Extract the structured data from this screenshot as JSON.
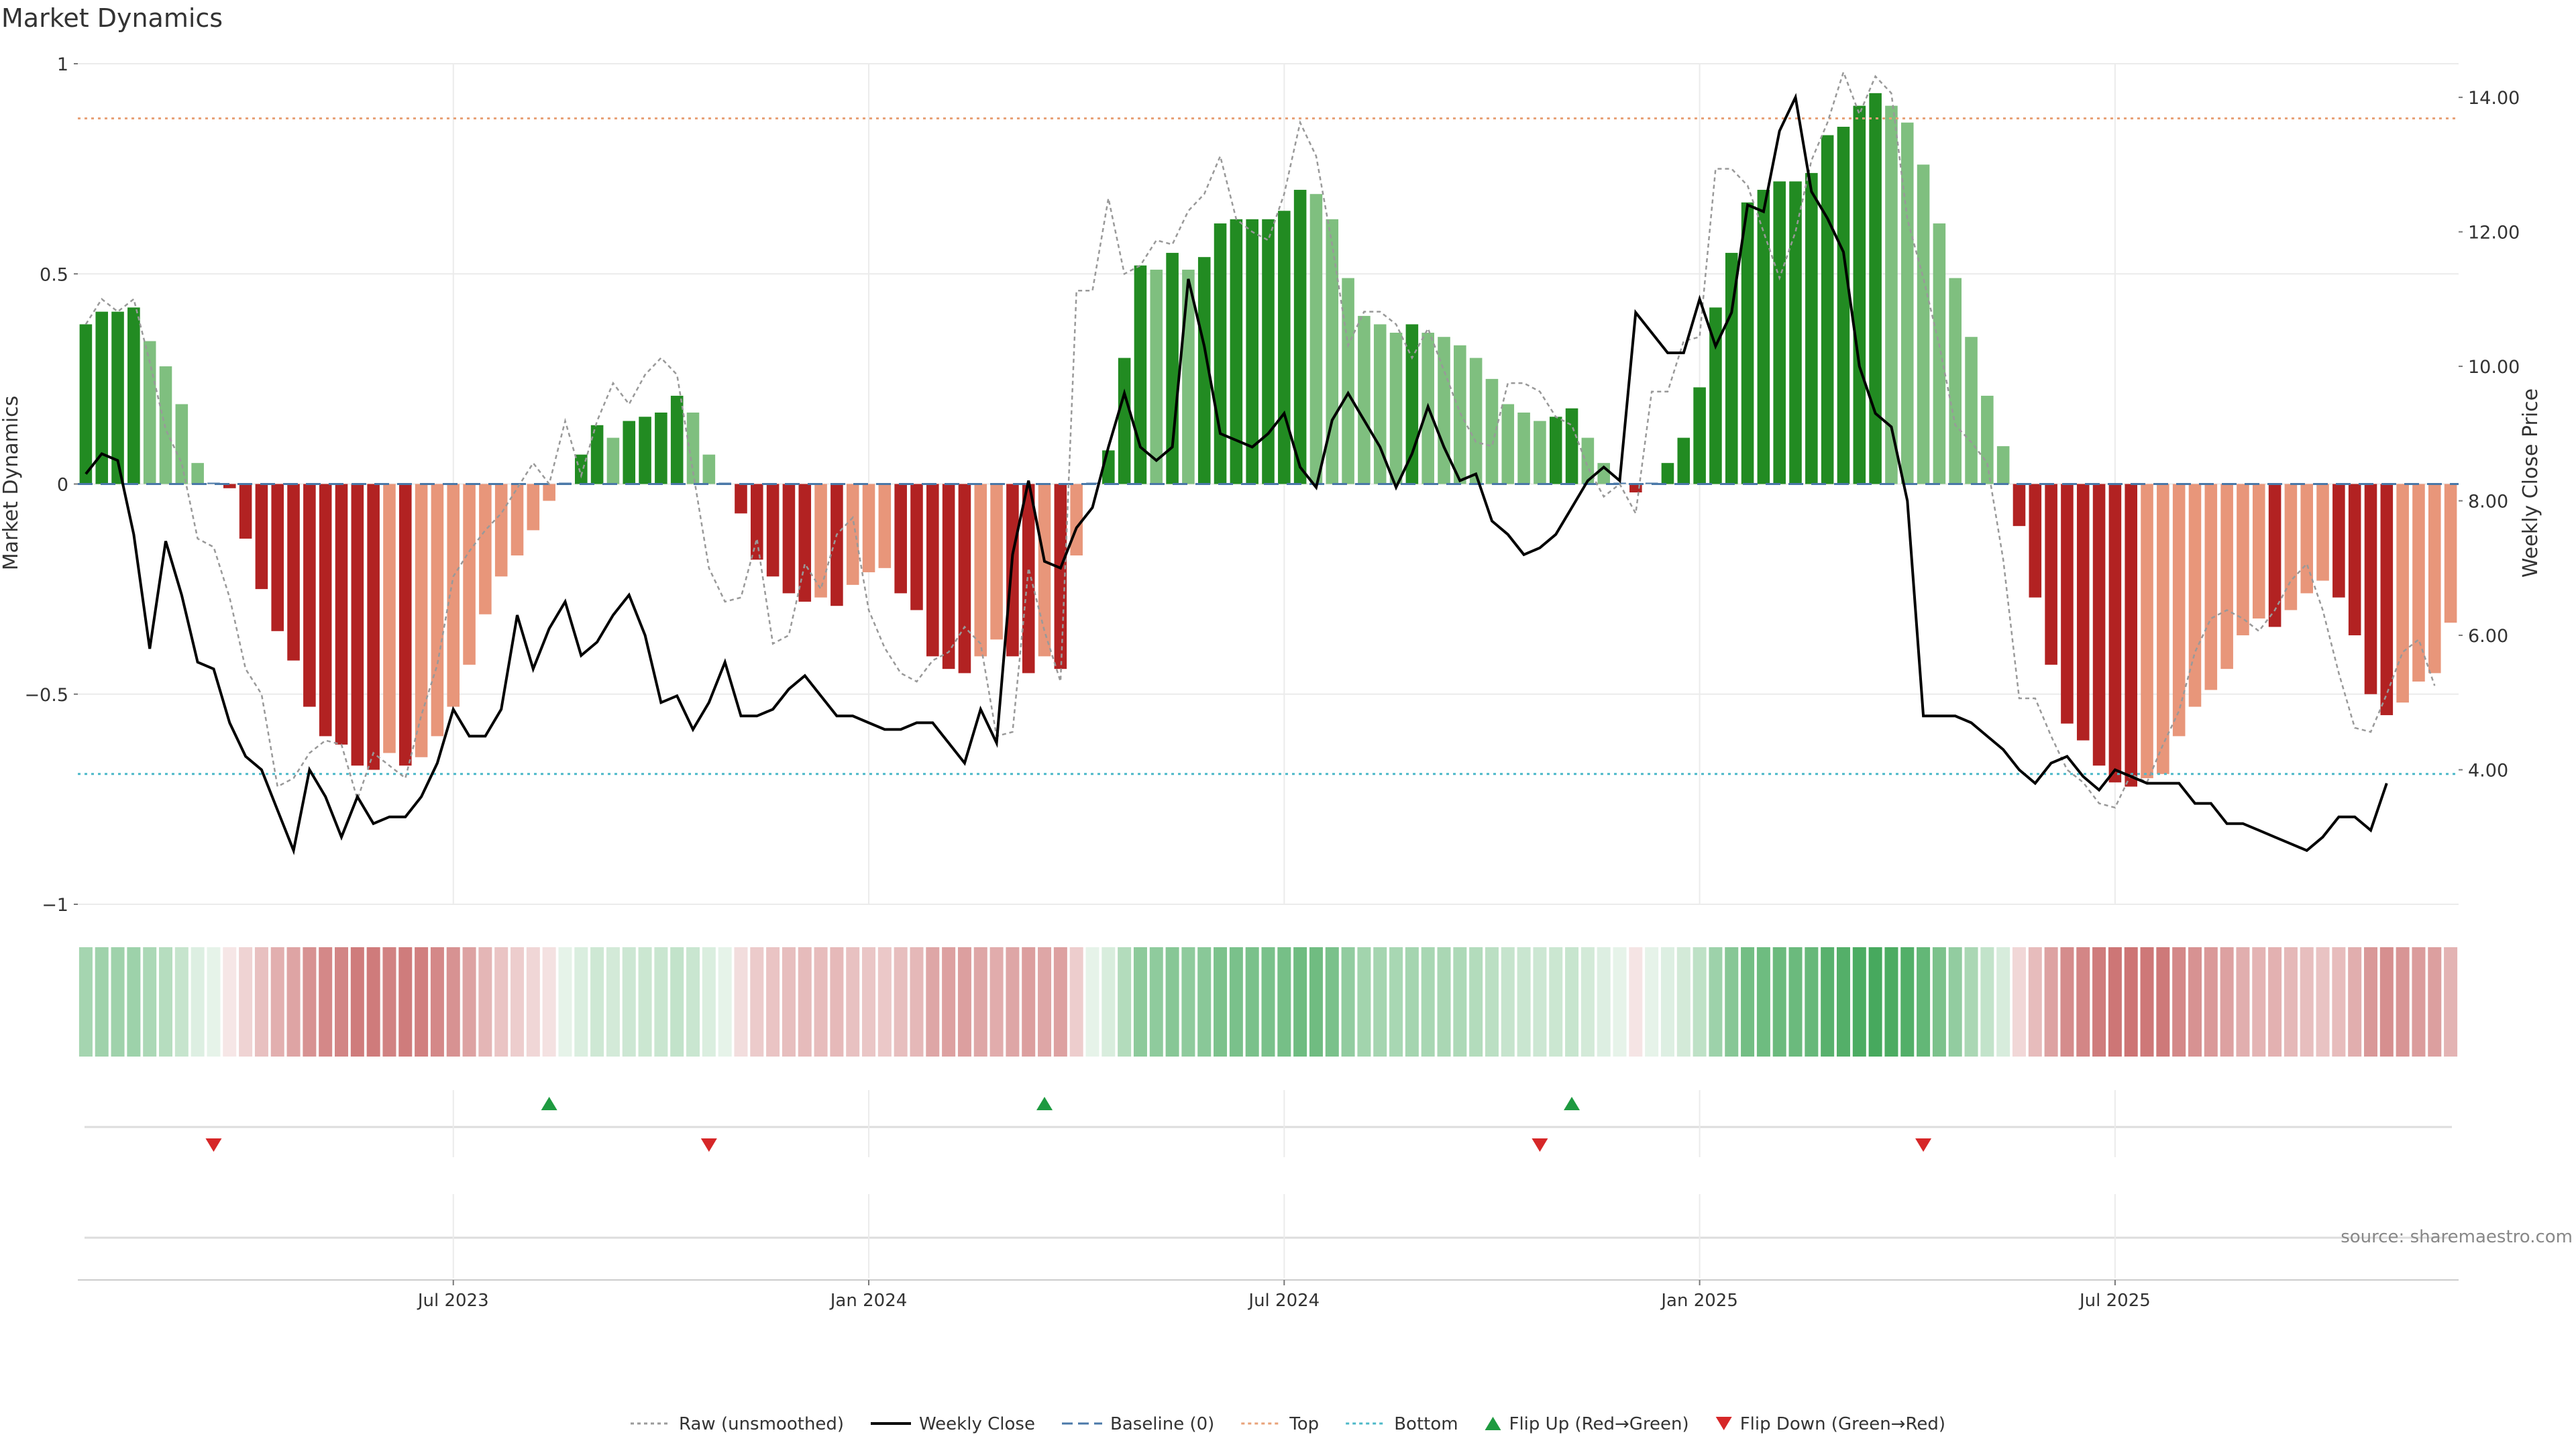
{
  "chart_data": {
    "type": "bar",
    "title": "Market Dynamics",
    "ylabel_left": "Market Dynamics",
    "ylabel_right": "Weekly Close Price",
    "source": "source: sharemaestro.com",
    "ylim_left": [
      -1,
      1
    ],
    "ylim_right": [
      2.0,
      14.5
    ],
    "left_ticks": [
      1,
      0.5,
      0,
      -0.5,
      -1
    ],
    "left_tick_labels": [
      "1",
      "0.5",
      "0",
      "−0.5",
      "−1"
    ],
    "right_ticks": [
      14,
      12,
      10,
      8,
      6,
      4
    ],
    "right_tick_labels": [
      "14.00",
      "12.00",
      "10.00",
      "8.00",
      "6.00",
      "4.00"
    ],
    "x_ticks": [
      {
        "label": "Jul 2023",
        "index": 23
      },
      {
        "label": "Jan 2024",
        "index": 49
      },
      {
        "label": "Jul 2024",
        "index": 75
      },
      {
        "label": "Jan 2025",
        "index": 101
      },
      {
        "label": "Jul 2025",
        "index": 127
      }
    ],
    "top_line": 0.87,
    "bottom_line": -0.69,
    "baseline": 0,
    "bars": [
      0.38,
      0.41,
      0.41,
      0.42,
      0.34,
      0.28,
      0.19,
      0.05,
      0,
      -0.01,
      -0.13,
      -0.25,
      -0.35,
      -0.42,
      -0.53,
      -0.6,
      -0.62,
      -0.67,
      -0.68,
      -0.64,
      -0.67,
      -0.65,
      -0.6,
      -0.53,
      -0.43,
      -0.31,
      -0.22,
      -0.17,
      -0.11,
      -0.04,
      0,
      0.07,
      0.14,
      0.11,
      0.15,
      0.16,
      0.17,
      0.21,
      0.17,
      0.07,
      0,
      -0.07,
      -0.18,
      -0.22,
      -0.26,
      -0.28,
      -0.27,
      -0.29,
      -0.24,
      -0.21,
      -0.2,
      -0.26,
      -0.3,
      -0.41,
      -0.44,
      -0.45,
      -0.41,
      -0.37,
      -0.41,
      -0.45,
      -0.41,
      -0.44,
      -0.17,
      0,
      0.08,
      0.3,
      0.52,
      0.51,
      0.55,
      0.51,
      0.54,
      0.62,
      0.63,
      0.63,
      0.63,
      0.65,
      0.7,
      0.69,
      0.63,
      0.49,
      0.4,
      0.38,
      0.36,
      0.38,
      0.36,
      0.35,
      0.33,
      0.3,
      0.25,
      0.19,
      0.17,
      0.15,
      0.16,
      0.18,
      0.11,
      0.05,
      0,
      -0.02,
      0,
      0.05,
      0.11,
      0.23,
      0.42,
      0.55,
      0.67,
      0.7,
      0.72,
      0.72,
      0.74,
      0.83,
      0.85,
      0.9,
      0.93,
      0.9,
      0.86,
      0.76,
      0.62,
      0.49,
      0.35,
      0.21,
      0.09,
      -0.1,
      -0.27,
      -0.43,
      -0.57,
      -0.61,
      -0.67,
      -0.71,
      -0.72,
      -0.7,
      -0.69,
      -0.6,
      -0.53,
      -0.49,
      -0.44,
      -0.36,
      -0.32,
      -0.34,
      -0.3,
      -0.26,
      -0.23,
      -0.27,
      -0.36,
      -0.5,
      -0.55,
      -0.52,
      -0.47,
      -0.45,
      -0.33
    ],
    "series": [
      {
        "name": "Raw (unsmoothed)",
        "values": [
          0.38,
          0.44,
          0.41,
          0.44,
          0.29,
          0.13,
          0.05,
          -0.13,
          -0.15,
          -0.27,
          -0.44,
          -0.5,
          -0.72,
          -0.7,
          -0.64,
          -0.61,
          -0.62,
          -0.75,
          -0.64,
          -0.67,
          -0.7,
          -0.55,
          -0.43,
          -0.22,
          -0.16,
          -0.11,
          -0.07,
          -0.01,
          0.05,
          0,
          0.15,
          0.02,
          0.15,
          0.24,
          0.19,
          0.26,
          0.3,
          0.26,
          0.03,
          -0.2,
          -0.28,
          -0.27,
          -0.13,
          -0.38,
          -0.36,
          -0.19,
          -0.25,
          -0.12,
          -0.08,
          -0.3,
          -0.39,
          -0.45,
          -0.47,
          -0.42,
          -0.4,
          -0.34,
          -0.38,
          -0.6,
          -0.59,
          -0.2,
          -0.35,
          -0.47,
          0.46,
          0.46,
          0.68,
          0.5,
          0.52,
          0.58,
          0.57,
          0.65,
          0.69,
          0.78,
          0.63,
          0.6,
          0.58,
          0.69,
          0.86,
          0.78,
          0.57,
          0.33,
          0.41,
          0.41,
          0.38,
          0.3,
          0.37,
          0.27,
          0.17,
          0.1,
          0.09,
          0.24,
          0.24,
          0.22,
          0.16,
          0.14,
          0.04,
          -0.03,
          0,
          -0.07,
          0.22,
          0.22,
          0.34,
          0.35,
          0.75,
          0.75,
          0.71,
          0.6,
          0.49,
          0.6,
          0.77,
          0.86,
          0.98,
          0.88,
          0.97,
          0.93,
          0.63,
          0.49,
          0.33,
          0.14,
          0.1,
          0.05,
          -0.18,
          -0.51,
          -0.51,
          -0.6,
          -0.68,
          -0.71,
          -0.76,
          -0.77,
          -0.69,
          -0.71,
          -0.62,
          -0.54,
          -0.4,
          -0.32,
          -0.3,
          -0.32,
          -0.35,
          -0.3,
          -0.23,
          -0.19,
          -0.3,
          -0.45,
          -0.58,
          -0.59,
          -0.5,
          -0.4,
          -0.37,
          -0.48
        ]
      },
      {
        "name": "Weekly Close",
        "values": [
          8.4,
          8.7,
          8.6,
          7.5,
          5.8,
          7.4,
          6.6,
          5.6,
          5.5,
          4.7,
          4.2,
          4.0,
          3.4,
          2.8,
          4.0,
          3.6,
          3.0,
          3.6,
          3.2,
          3.3,
          3.3,
          3.6,
          4.1,
          4.9,
          4.5,
          4.5,
          4.9,
          6.3,
          5.5,
          6.1,
          6.5,
          5.7,
          5.9,
          6.3,
          6.6,
          6.0,
          5.0,
          5.1,
          4.6,
          5.0,
          5.6,
          4.8,
          4.8,
          4.9,
          5.2,
          5.4,
          5.1,
          4.8,
          4.8,
          4.7,
          4.6,
          4.6,
          4.7,
          4.7,
          4.4,
          4.1,
          4.9,
          4.4,
          7.2,
          8.3,
          7.1,
          7.0,
          7.6,
          7.9,
          8.8,
          9.6,
          8.8,
          8.6,
          8.8,
          11.3,
          10.3,
          9.0,
          8.9,
          8.8,
          9.0,
          9.3,
          8.5,
          8.2,
          9.2,
          9.6,
          9.2,
          8.8,
          8.2,
          8.7,
          9.4,
          8.8,
          8.3,
          8.4,
          7.7,
          7.5,
          7.2,
          7.3,
          7.5,
          7.9,
          8.3,
          8.5,
          8.3,
          10.8,
          10.5,
          10.2,
          10.2,
          11.0,
          10.3,
          10.8,
          12.4,
          12.3,
          13.5,
          14.0,
          12.6,
          12.2,
          11.7,
          10.0,
          9.3,
          9.1,
          8.0,
          4.8,
          4.8,
          4.8,
          4.7,
          4.5,
          4.3,
          4.0,
          3.8,
          4.1,
          4.2,
          3.9,
          3.7,
          4.0,
          3.9,
          3.8,
          3.8,
          3.8,
          3.5,
          3.5,
          3.2,
          3.2,
          3.1,
          3.0,
          2.9,
          2.8,
          3.0,
          3.3,
          3.3,
          3.1,
          3.8
        ]
      }
    ],
    "flip_up_index": [
      29,
      60,
      93
    ],
    "flip_down_index": [
      8,
      39,
      91,
      115
    ],
    "legend": [
      {
        "label": "Raw (unsmoothed)",
        "kind": "dotted-line",
        "color": "#999999"
      },
      {
        "label": "Weekly Close",
        "kind": "solid-line",
        "color": "#000000"
      },
      {
        "label": "Baseline (0)",
        "kind": "dashed-line",
        "color": "#4a78a8"
      },
      {
        "label": "Top",
        "kind": "dotted-line",
        "color": "#e8a278"
      },
      {
        "label": "Bottom",
        "kind": "dotted-line",
        "color": "#4cb8c8"
      },
      {
        "label": "Flip Up (Red→Green)",
        "kind": "triangle-up",
        "color": "#1e9a40"
      },
      {
        "label": "Flip Down (Green→Red)",
        "kind": "triangle-down",
        "color": "#d62728"
      }
    ],
    "legend_placement": "bottom-center",
    "grid": true,
    "colors": {
      "strong_green": "#228b22",
      "light_green": "#7fbf7f",
      "strong_red": "#b22222",
      "light_red": "#e8967a",
      "strip_green": "#2e9e48",
      "strip_red": "#b83c3c",
      "raw_line": "#999999",
      "close_line": "#000000",
      "baseline": "#4a78a8",
      "top_line": "#e8a278",
      "bottom_line": "#4cb8c8",
      "flip_up": "#1e9a40",
      "flip_down": "#d62728",
      "grid": "#ebebeb",
      "axis_text": "#333333"
    }
  }
}
